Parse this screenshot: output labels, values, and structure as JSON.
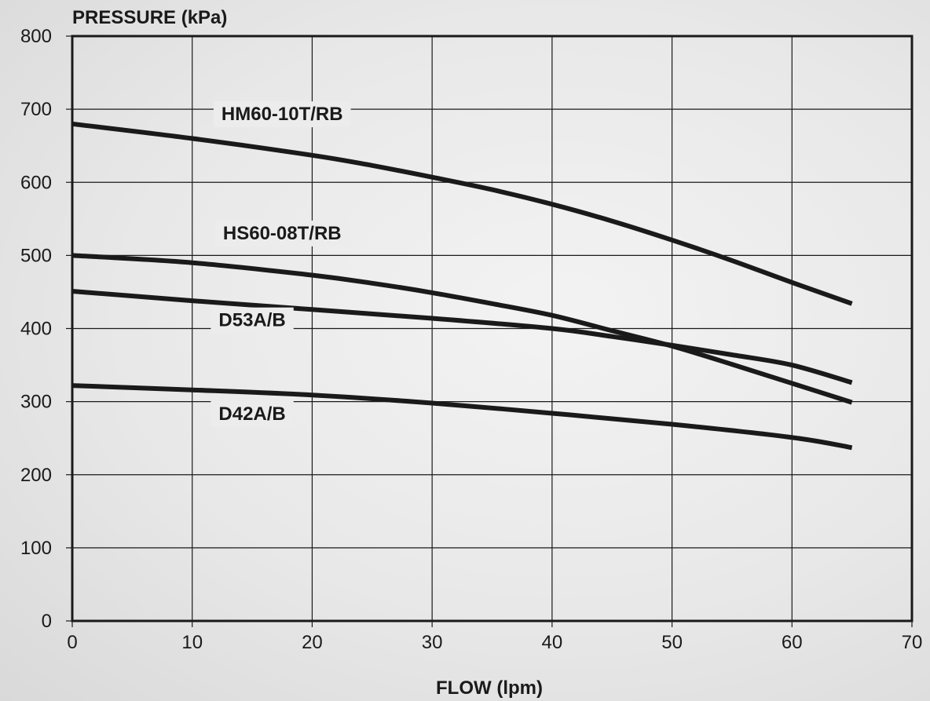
{
  "chart_data": {
    "type": "line",
    "title": "",
    "xlabel": "FLOW (lpm)",
    "ylabel": "PRESSURE (kPa)",
    "xlim": [
      0,
      70
    ],
    "ylim": [
      0,
      800
    ],
    "x_ticks": [
      0,
      10,
      20,
      30,
      40,
      50,
      60,
      70
    ],
    "y_ticks": [
      0,
      100,
      200,
      300,
      400,
      500,
      600,
      700,
      800
    ],
    "grid": true,
    "legend": "none",
    "series": [
      {
        "name": "HM60-10T/RB",
        "x": [
          0,
          10,
          20,
          25,
          30,
          35,
          40,
          45,
          50,
          55,
          60,
          65
        ],
        "y": [
          680,
          660,
          637,
          623,
          607,
          590,
          570,
          547,
          521,
          493,
          463,
          434
        ]
      },
      {
        "name": "HS60-08T/RB",
        "x": [
          0,
          10,
          20,
          25,
          30,
          35,
          40,
          45,
          50,
          55,
          60,
          65
        ],
        "y": [
          500,
          490,
          473,
          462,
          449,
          434,
          418,
          397,
          376,
          351,
          325,
          299
        ]
      },
      {
        "name": "D53A/B",
        "x": [
          0,
          10,
          20,
          30,
          40,
          45,
          50,
          55,
          60,
          65
        ],
        "y": [
          451,
          438,
          426,
          414,
          400,
          389,
          377,
          364,
          350,
          326
        ]
      },
      {
        "name": "D42A/B",
        "x": [
          0,
          10,
          20,
          30,
          40,
          50,
          60,
          65
        ],
        "y": [
          322,
          316,
          309,
          298,
          284,
          269,
          251,
          237
        ]
      }
    ],
    "annotations": [
      {
        "text": "HM60-10T/RB",
        "x": 17.5,
        "y": 685
      },
      {
        "text": "HS60-08T/RB",
        "x": 17.5,
        "y": 522
      },
      {
        "text": "D53A/B",
        "x": 15,
        "y": 403
      },
      {
        "text": "D42A/B",
        "x": 15,
        "y": 275
      }
    ]
  }
}
